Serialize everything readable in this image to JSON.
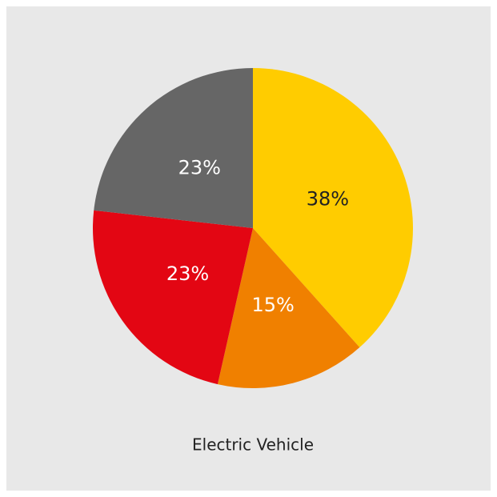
{
  "chart_data": {
    "type": "pie",
    "title": "Electric Vehicle",
    "values": [
      38,
      15,
      23,
      23
    ],
    "value_labels": [
      "38%",
      "15%",
      "23%",
      "23%"
    ],
    "colors": [
      "#ffcc00",
      "#f08000",
      "#e30613",
      "#666666"
    ],
    "label_colors": [
      "#222222",
      "#ffffff",
      "#ffffff",
      "#ffffff"
    ]
  }
}
